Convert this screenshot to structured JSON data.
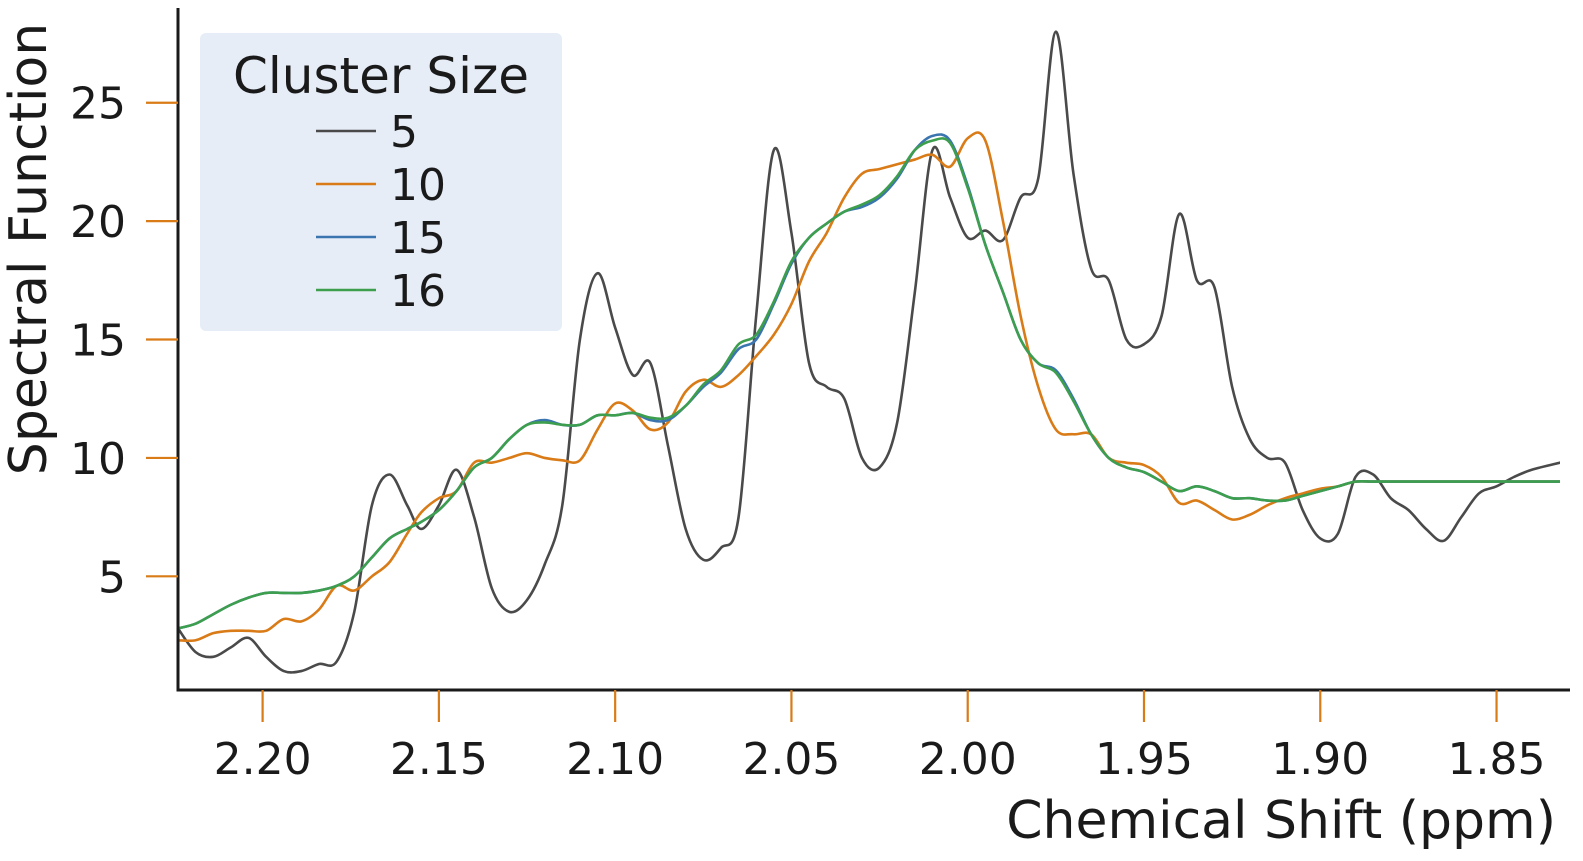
{
  "chart_data": {
    "type": "line",
    "xlabel": "Chemical Shift (ppm)",
    "ylabel": "Spectral Function",
    "xlim": [
      2.224,
      1.832
    ],
    "ylim": [
      0.2,
      29.0
    ],
    "x_reversed": true,
    "xticks": [
      2.2,
      2.15,
      2.1,
      2.05,
      2.0,
      1.95,
      1.9,
      1.85
    ],
    "xtick_labels": [
      "2.20",
      "2.15",
      "2.10",
      "2.05",
      "2.00",
      "1.95",
      "1.90",
      "1.85"
    ],
    "yticks": [
      5,
      10,
      15,
      20,
      25
    ],
    "ytick_labels": [
      "5",
      "10",
      "15",
      "20",
      "25"
    ],
    "tick_color": "#d97b17",
    "grid": false,
    "legend": {
      "title": "Cluster Size",
      "position": "top-left",
      "background": "#e6edf7"
    },
    "series": [
      {
        "name": "5",
        "color": "#4a4a4a",
        "x": [
          2.224,
          2.219,
          2.214,
          2.209,
          2.204,
          2.199,
          2.194,
          2.189,
          2.184,
          2.179,
          2.174,
          2.169,
          2.164,
          2.159,
          2.155,
          2.15,
          2.145,
          2.14,
          2.135,
          2.13,
          2.125,
          2.12,
          2.115,
          2.11,
          2.105,
          2.1,
          2.095,
          2.09,
          2.085,
          2.08,
          2.075,
          2.07,
          2.065,
          2.06,
          2.055,
          2.05,
          2.045,
          2.04,
          2.035,
          2.03,
          2.025,
          2.02,
          2.015,
          2.01,
          2.005,
          2.0,
          1.995,
          1.99,
          1.985,
          1.98,
          1.975,
          1.97,
          1.965,
          1.96,
          1.955,
          1.95,
          1.945,
          1.94,
          1.935,
          1.93,
          1.925,
          1.92,
          1.915,
          1.91,
          1.905,
          1.9,
          1.895,
          1.89,
          1.885,
          1.88,
          1.875,
          1.87,
          1.865,
          1.86,
          1.855,
          1.85,
          1.845,
          1.84,
          1.832
        ],
        "y": [
          2.8,
          1.8,
          1.6,
          2.0,
          2.4,
          1.6,
          1.0,
          1.0,
          1.3,
          1.4,
          3.5,
          8.0,
          9.3,
          8.0,
          7.0,
          8.0,
          9.5,
          7.5,
          4.5,
          3.5,
          4.0,
          5.5,
          8.0,
          15.0,
          17.8,
          15.5,
          13.5,
          14.0,
          10.5,
          7.0,
          5.7,
          6.2,
          7.5,
          16.0,
          23.0,
          19.5,
          14.0,
          13.0,
          12.5,
          10.0,
          9.6,
          11.5,
          17.0,
          23.0,
          21.0,
          19.3,
          19.6,
          19.2,
          21.0,
          21.8,
          28.0,
          22.0,
          18.0,
          17.5,
          15.0,
          14.8,
          16.0,
          20.3,
          17.5,
          17.2,
          13.0,
          10.8,
          10.0,
          9.8,
          7.8,
          6.6,
          6.8,
          9.2,
          9.3,
          8.3,
          7.8,
          7.0,
          6.5,
          7.5,
          8.5,
          8.8,
          9.2,
          9.5,
          9.8
        ]
      },
      {
        "name": "10",
        "color": "#d97b17",
        "x": [
          2.224,
          2.219,
          2.214,
          2.209,
          2.204,
          2.199,
          2.194,
          2.189,
          2.184,
          2.179,
          2.174,
          2.169,
          2.164,
          2.159,
          2.155,
          2.15,
          2.145,
          2.14,
          2.135,
          2.13,
          2.125,
          2.12,
          2.115,
          2.11,
          2.105,
          2.1,
          2.095,
          2.09,
          2.085,
          2.08,
          2.075,
          2.07,
          2.065,
          2.06,
          2.055,
          2.05,
          2.045,
          2.04,
          2.035,
          2.03,
          2.025,
          2.02,
          2.015,
          2.01,
          2.005,
          2.0,
          1.995,
          1.99,
          1.985,
          1.98,
          1.975,
          1.97,
          1.965,
          1.96,
          1.955,
          1.95,
          1.945,
          1.94,
          1.935,
          1.93,
          1.925,
          1.92,
          1.915,
          1.91,
          1.905,
          1.9,
          1.895,
          1.89,
          1.885,
          1.88,
          1.875,
          1.87,
          1.865,
          1.86,
          1.855,
          1.85,
          1.845,
          1.84,
          1.832
        ],
        "y": [
          2.3,
          2.3,
          2.6,
          2.7,
          2.7,
          2.7,
          3.2,
          3.1,
          3.6,
          4.6,
          4.4,
          5.0,
          5.6,
          6.8,
          7.7,
          8.3,
          8.6,
          9.8,
          9.8,
          10.0,
          10.2,
          10.0,
          9.9,
          9.9,
          11.2,
          12.3,
          12.0,
          11.2,
          11.5,
          12.8,
          13.3,
          13.0,
          13.5,
          14.3,
          15.2,
          16.5,
          18.3,
          19.5,
          21.0,
          22.0,
          22.2,
          22.4,
          22.6,
          22.8,
          22.3,
          23.5,
          23.4,
          20.0,
          16.0,
          13.0,
          11.2,
          11.0,
          11.0,
          10.0,
          9.8,
          9.7,
          9.2,
          8.1,
          8.2,
          7.8,
          7.4,
          7.6,
          8.0,
          8.3,
          8.5,
          8.7,
          8.8,
          9.0,
          9.0,
          9.0,
          9.0,
          9.0,
          9.0,
          9.0,
          9.0,
          9.0,
          9.0,
          9.0,
          9.0
        ]
      },
      {
        "name": "15",
        "color": "#3b75af",
        "x": [
          2.224,
          2.219,
          2.214,
          2.209,
          2.204,
          2.199,
          2.194,
          2.189,
          2.184,
          2.179,
          2.174,
          2.169,
          2.164,
          2.159,
          2.155,
          2.15,
          2.145,
          2.14,
          2.135,
          2.13,
          2.125,
          2.12,
          2.115,
          2.11,
          2.105,
          2.1,
          2.095,
          2.09,
          2.085,
          2.08,
          2.075,
          2.07,
          2.065,
          2.06,
          2.055,
          2.05,
          2.045,
          2.04,
          2.035,
          2.03,
          2.025,
          2.02,
          2.015,
          2.01,
          2.005,
          2.0,
          1.995,
          1.99,
          1.985,
          1.98,
          1.975,
          1.97,
          1.965,
          1.96,
          1.955,
          1.95,
          1.945,
          1.94,
          1.935,
          1.93,
          1.925,
          1.92,
          1.915,
          1.91,
          1.905,
          1.9,
          1.895,
          1.89,
          1.885,
          1.88,
          1.875,
          1.87,
          1.865,
          1.86,
          1.855,
          1.85,
          1.845,
          1.84,
          1.832
        ],
        "y": [
          2.8,
          3.0,
          3.4,
          3.8,
          4.1,
          4.3,
          4.3,
          4.3,
          4.4,
          4.6,
          5.0,
          5.8,
          6.6,
          7.0,
          7.3,
          7.8,
          8.6,
          9.6,
          10.0,
          10.8,
          11.4,
          11.6,
          11.4,
          11.4,
          11.8,
          11.8,
          11.9,
          11.6,
          11.6,
          12.2,
          13.0,
          13.6,
          14.6,
          15.0,
          16.5,
          18.2,
          19.3,
          19.9,
          20.4,
          20.6,
          21.0,
          21.8,
          23.0,
          23.6,
          23.4,
          21.5,
          19.0,
          17.0,
          15.0,
          14.0,
          13.7,
          12.5,
          11.0,
          10.0,
          9.6,
          9.4,
          9.0,
          8.6,
          8.8,
          8.6,
          8.3,
          8.3,
          8.2,
          8.2,
          8.4,
          8.6,
          8.8,
          9.0,
          9.0,
          9.0,
          9.0,
          9.0,
          9.0,
          9.0,
          9.0,
          9.0,
          9.0,
          9.0,
          9.0
        ]
      },
      {
        "name": "16",
        "color": "#3d9e4e",
        "x": [
          2.224,
          2.219,
          2.214,
          2.209,
          2.204,
          2.199,
          2.194,
          2.189,
          2.184,
          2.179,
          2.174,
          2.169,
          2.164,
          2.159,
          2.155,
          2.15,
          2.145,
          2.14,
          2.135,
          2.13,
          2.125,
          2.12,
          2.115,
          2.11,
          2.105,
          2.1,
          2.095,
          2.09,
          2.085,
          2.08,
          2.075,
          2.07,
          2.065,
          2.06,
          2.055,
          2.05,
          2.045,
          2.04,
          2.035,
          2.03,
          2.025,
          2.02,
          2.015,
          2.01,
          2.005,
          2.0,
          1.995,
          1.99,
          1.985,
          1.98,
          1.975,
          1.97,
          1.965,
          1.96,
          1.955,
          1.95,
          1.945,
          1.94,
          1.935,
          1.93,
          1.925,
          1.92,
          1.915,
          1.91,
          1.905,
          1.9,
          1.895,
          1.89,
          1.885,
          1.88,
          1.875,
          1.87,
          1.865,
          1.86,
          1.855,
          1.85,
          1.845,
          1.84,
          1.832
        ],
        "y": [
          2.8,
          3.0,
          3.4,
          3.8,
          4.1,
          4.3,
          4.3,
          4.3,
          4.4,
          4.6,
          5.0,
          5.8,
          6.6,
          7.0,
          7.3,
          7.8,
          8.6,
          9.6,
          10.0,
          10.8,
          11.4,
          11.5,
          11.4,
          11.4,
          11.8,
          11.8,
          11.9,
          11.7,
          11.7,
          12.2,
          13.1,
          13.7,
          14.8,
          15.2,
          16.6,
          18.3,
          19.3,
          19.9,
          20.4,
          20.7,
          21.1,
          21.9,
          23.0,
          23.4,
          23.3,
          21.4,
          19.0,
          17.0,
          15.0,
          14.0,
          13.6,
          12.4,
          11.0,
          10.0,
          9.6,
          9.4,
          9.0,
          8.6,
          8.8,
          8.6,
          8.3,
          8.3,
          8.2,
          8.2,
          8.4,
          8.6,
          8.8,
          9.0,
          9.0,
          9.0,
          9.0,
          9.0,
          9.0,
          9.0,
          9.0,
          9.0,
          9.0,
          9.0,
          9.0
        ]
      }
    ]
  }
}
